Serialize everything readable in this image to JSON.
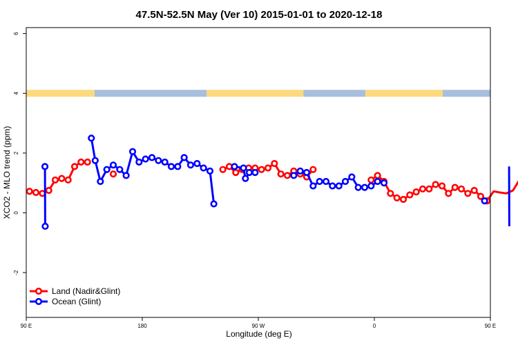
{
  "chart_data": {
    "type": "line",
    "title": "47.5N-52.5N May (Ver 10)   2015-01-01 to 2020-12-18",
    "xlabel": "Longitude (deg E)",
    "ylabel": "XCO2 - MLO trend (ppm)",
    "xlim": [
      90,
      450
    ],
    "ylim": [
      -3.5,
      6.2
    ],
    "x_ticks": [
      {
        "value": 90,
        "label": "90 E"
      },
      {
        "value": 180,
        "label": "180"
      },
      {
        "value": 270,
        "label": "90 W"
      },
      {
        "value": 360,
        "label": "0"
      },
      {
        "value": 450,
        "label": "90 E"
      },
      {
        "value": 540,
        "label": "180"
      }
    ],
    "y_ticks": [
      {
        "value": -2,
        "label": "-2"
      },
      {
        "value": 0,
        "label": "0"
      },
      {
        "value": 2,
        "label": "2"
      },
      {
        "value": 4,
        "label": "4"
      },
      {
        "value": 6,
        "label": "6"
      }
    ],
    "legend_position": "bottom-left",
    "land_ocean_band": {
      "y": 4,
      "land_color": "#fcd97c",
      "ocean_color": "#a7bedc",
      "segments": [
        {
          "from": 90,
          "to": 143,
          "type": "land"
        },
        {
          "from": 143,
          "to": 230,
          "type": "ocean"
        },
        {
          "from": 230,
          "to": 305,
          "type": "land"
        },
        {
          "from": 305,
          "to": 353,
          "type": "ocean"
        },
        {
          "from": 353,
          "to": 413,
          "type": "land"
        },
        {
          "from": 413,
          "to": 503,
          "type": "ocean"
        },
        {
          "from": 503,
          "to": 540,
          "type": "land"
        }
      ]
    },
    "series": [
      {
        "name": "Land (Nadir&Glint)",
        "color": "#ff0000",
        "points": [
          [
            92.5,
            0.72
          ],
          [
            97.5,
            0.68
          ],
          [
            102.5,
            0.65
          ],
          [
            107.5,
            0.75
          ],
          [
            112.5,
            1.1
          ],
          [
            117.5,
            1.15
          ],
          [
            122.5,
            1.1
          ],
          [
            127.5,
            1.55
          ],
          [
            132.5,
            1.7
          ],
          [
            137.5,
            1.7
          ],
          null,
          [
            157.5,
            1.3
          ],
          null,
          [
            242.5,
            1.45
          ],
          [
            247.5,
            1.55
          ],
          [
            252.5,
            1.35
          ],
          [
            257.5,
            1.45
          ],
          [
            262.5,
            1.5
          ],
          [
            267.5,
            1.5
          ],
          [
            272.5,
            1.45
          ],
          [
            277.5,
            1.5
          ],
          [
            282.5,
            1.65
          ],
          [
            287.5,
            1.3
          ],
          [
            292.5,
            1.25
          ],
          [
            297.5,
            1.4
          ],
          [
            302.5,
            1.3
          ],
          [
            307.5,
            1.2
          ],
          [
            312.5,
            1.45
          ],
          null,
          [
            357.5,
            1.1
          ],
          [
            362.5,
            1.25
          ],
          [
            367.5,
            1.05
          ],
          [
            372.5,
            0.65
          ],
          [
            377.5,
            0.5
          ],
          [
            382.5,
            0.45
          ],
          [
            387.5,
            0.6
          ],
          [
            392.5,
            0.7
          ],
          [
            397.5,
            0.8
          ],
          [
            402.5,
            0.8
          ],
          [
            407.5,
            0.95
          ],
          [
            412.5,
            0.9
          ],
          [
            417.5,
            0.65
          ],
          [
            422.5,
            0.85
          ],
          [
            427.5,
            0.8
          ],
          [
            432.5,
            0.65
          ],
          [
            437.5,
            0.75
          ],
          [
            442.5,
            0.55
          ],
          [
            447.5,
            0.4
          ],
          [
            452.5,
            0.72
          ],
          [
            457.5,
            0.68
          ],
          [
            462.5,
            0.65
          ],
          [
            467.5,
            0.75
          ],
          [
            472.5,
            1.1
          ],
          [
            477.5,
            1.15
          ],
          [
            482.5,
            1.1
          ],
          [
            487.5,
            1.55
          ],
          [
            492.5,
            1.7
          ],
          [
            497.5,
            1.7
          ],
          null,
          [
            517.5,
            1.3
          ]
        ]
      },
      {
        "name": "Ocean (Glint)",
        "color": "#0000ff",
        "points": [
          [
            104.5,
            1.55
          ],
          [
            104.7,
            -0.45
          ],
          null,
          [
            140.5,
            2.5
          ],
          [
            143.5,
            1.75
          ],
          [
            147.5,
            1.05
          ],
          [
            152.5,
            1.45
          ],
          [
            157.5,
            1.6
          ],
          [
            162.5,
            1.45
          ],
          [
            167.5,
            1.25
          ],
          [
            172.5,
            2.05
          ],
          [
            177.5,
            1.7
          ],
          [
            182.5,
            1.8
          ],
          [
            187.5,
            1.85
          ],
          [
            192.5,
            1.75
          ],
          [
            197.5,
            1.7
          ],
          [
            202.5,
            1.55
          ],
          [
            207.5,
            1.55
          ],
          [
            212.5,
            1.85
          ],
          [
            217.5,
            1.6
          ],
          [
            222.5,
            1.65
          ],
          [
            227.5,
            1.5
          ],
          [
            232.5,
            1.4
          ],
          [
            235.5,
            0.3
          ],
          null,
          [
            251.5,
            1.55
          ],
          [
            258.5,
            1.5
          ],
          [
            260,
            1.15
          ],
          [
            263,
            1.35
          ],
          [
            267.5,
            1.35
          ],
          null,
          [
            297.5,
            1.25
          ],
          [
            302.5,
            1.4
          ],
          [
            307.5,
            1.35
          ],
          [
            312.5,
            0.9
          ],
          [
            317.5,
            1.05
          ],
          [
            322.5,
            1.05
          ],
          [
            327.5,
            0.9
          ],
          [
            332.5,
            0.9
          ],
          [
            337.5,
            1.05
          ],
          [
            342.5,
            1.2
          ],
          [
            347.5,
            0.85
          ],
          [
            352.5,
            0.85
          ],
          [
            357.5,
            0.9
          ],
          [
            362.5,
            1.05
          ],
          [
            367.5,
            1.0
          ],
          null,
          [
            445.5,
            0.4
          ],
          null,
          [
            464.5,
            1.55
          ],
          [
            464.7,
            -0.45
          ],
          null,
          [
            500.5,
            2.5
          ],
          [
            503.5,
            1.75
          ],
          [
            507.5,
            1.05
          ],
          [
            512.5,
            1.45
          ],
          [
            517.5,
            1.6
          ],
          [
            522.5,
            1.45
          ],
          [
            527.5,
            1.25
          ],
          [
            532.5,
            2.05
          ],
          [
            537.5,
            1.7
          ]
        ]
      }
    ]
  }
}
